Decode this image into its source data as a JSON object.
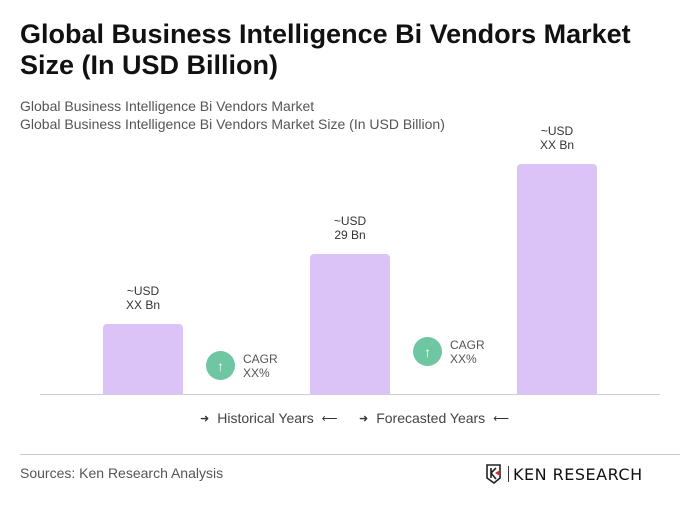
{
  "title": "Global Business Intelligence Bi Vendors Market Size (In USD Billion)",
  "subtitle1": "Global Business Intelligence Bi Vendors Market",
  "subtitle2": "Global Business Intelligence Bi Vendors Market Size (In USD Billion)",
  "chart_data": {
    "type": "bar",
    "categories": [
      "",
      "",
      ""
    ],
    "values": [
      14.5,
      29,
      47.6
    ],
    "data_labels": [
      [
        "~USD",
        "XX Bn"
      ],
      [
        "~USD",
        "29 Bn"
      ],
      [
        "~USD",
        "XX Bn"
      ]
    ],
    "bar_color": "#dcc3f7",
    "cagr": [
      {
        "line1": "CAGR",
        "line2": "XX%"
      },
      {
        "line1": "CAGR",
        "line2": "XX%"
      }
    ],
    "cagr_color": "#6fc6a2",
    "legend": [
      "Historical Years",
      "Forecasted Years"
    ]
  },
  "sources": "Sources: Ken Research Analysis",
  "logo_text": "KEN RESEARCH"
}
